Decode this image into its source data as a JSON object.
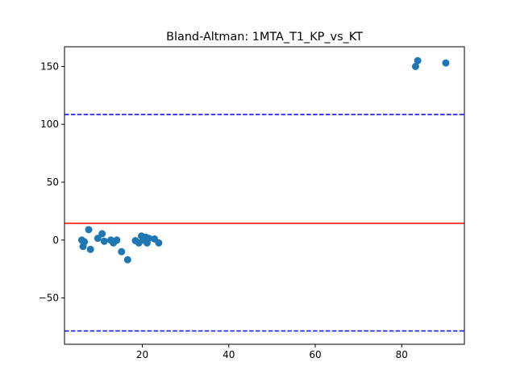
{
  "chart_data": {
    "type": "scatter",
    "title": "Bland-Altman: 1MTA_T1_KP_vs_KT",
    "xlabel": "",
    "ylabel": "",
    "xlim": [
      2.0,
      94.5
    ],
    "ylim": [
      -90,
      167
    ],
    "x_ticks": [
      20,
      40,
      60,
      80
    ],
    "x_tick_labels": [
      "20",
      "40",
      "60",
      "80"
    ],
    "y_ticks": [
      -50,
      0,
      50,
      100,
      150
    ],
    "y_tick_labels": [
      "−50",
      "0",
      "50",
      "100",
      "150"
    ],
    "grid": false,
    "point_color": "#1f77b4",
    "mean_line": {
      "value": 14.5,
      "color": "#ff0000",
      "style": "solid"
    },
    "limit_lines": [
      {
        "value": 108.5,
        "color": "#0000ff",
        "style": "dashed"
      },
      {
        "value": -78.5,
        "color": "#0000ff",
        "style": "dashed"
      }
    ],
    "points": [
      {
        "x": 6.0,
        "y": 0.0
      },
      {
        "x": 6.3,
        "y": -5.5
      },
      {
        "x": 6.6,
        "y": -1.5
      },
      {
        "x": 7.6,
        "y": 9.0
      },
      {
        "x": 8.0,
        "y": -8.0
      },
      {
        "x": 9.7,
        "y": 1.5
      },
      {
        "x": 10.7,
        "y": 5.5
      },
      {
        "x": 11.2,
        "y": -1.0
      },
      {
        "x": 12.7,
        "y": 0.0
      },
      {
        "x": 13.3,
        "y": -2.5
      },
      {
        "x": 13.6,
        "y": -1.0
      },
      {
        "x": 14.1,
        "y": 0.0
      },
      {
        "x": 15.2,
        "y": -10.0
      },
      {
        "x": 16.6,
        "y": -17.0
      },
      {
        "x": 18.4,
        "y": -0.5
      },
      {
        "x": 19.2,
        "y": -2.5
      },
      {
        "x": 19.8,
        "y": 3.5
      },
      {
        "x": 20.3,
        "y": 0.0
      },
      {
        "x": 20.8,
        "y": 2.5
      },
      {
        "x": 21.1,
        "y": -2.5
      },
      {
        "x": 21.5,
        "y": 1.5
      },
      {
        "x": 22.8,
        "y": 1.0
      },
      {
        "x": 23.8,
        "y": -2.5
      },
      {
        "x": 83.2,
        "y": 150.0
      },
      {
        "x": 83.7,
        "y": 155.0
      },
      {
        "x": 90.2,
        "y": 153.0
      }
    ]
  }
}
